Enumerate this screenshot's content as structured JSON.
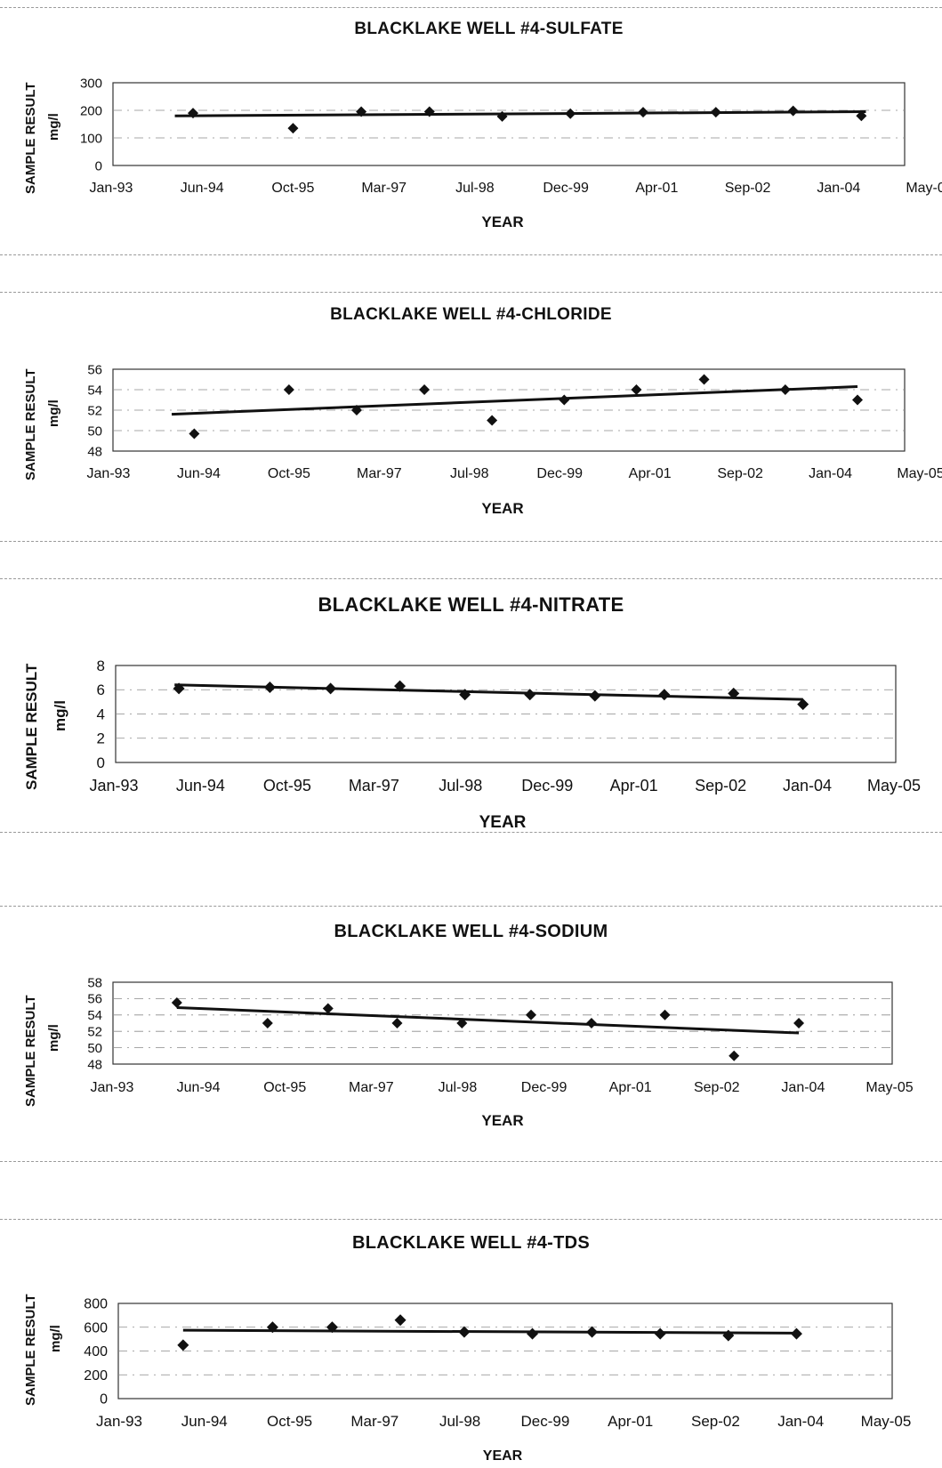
{
  "common": {
    "ylabel": "SAMPLE RESULT",
    "yunit": "mg/l",
    "xlabel": "YEAR",
    "x_tick_labels": [
      "Jan-93",
      "Jun-94",
      "Oct-95",
      "Mar-97",
      "Jul-98",
      "Dec-99",
      "Apr-01",
      "Sep-02",
      "Jan-04",
      "May-05"
    ]
  },
  "chart_data": [
    {
      "type": "scatter",
      "title": "BLACKLAKE WELL #4-SULFATE",
      "xlabel": "YEAR",
      "ylabel": "SAMPLE RESULT mg/l",
      "ylim": [
        0,
        300
      ],
      "yticks": [
        0,
        100,
        200,
        300
      ],
      "grid": true,
      "legend": "none",
      "x": [
        0.9,
        2.0,
        2.75,
        3.5,
        4.3,
        5.05,
        5.85,
        6.65,
        7.5,
        8.25
      ],
      "values": [
        190,
        135,
        195,
        195,
        178,
        188,
        193,
        193,
        198,
        180
      ],
      "trendline": [
        [
          0.7,
          180
        ],
        [
          8.3,
          195
        ]
      ]
    },
    {
      "type": "scatter",
      "title": "BLACKLAKE WELL #4-CHLORIDE",
      "xlabel": "YEAR",
      "ylabel": "SAMPLE RESULT mg/l",
      "ylim": [
        48,
        56
      ],
      "yticks": [
        48,
        50,
        52,
        54,
        56
      ],
      "grid": true,
      "legend": "none",
      "x": [
        0.95,
        2.0,
        2.75,
        3.5,
        4.25,
        5.05,
        5.85,
        6.6,
        7.5,
        8.3
      ],
      "values": [
        49.7,
        54,
        52,
        54,
        51,
        53,
        54,
        55,
        54,
        53
      ],
      "trendline": [
        [
          0.7,
          51.6
        ],
        [
          8.3,
          54.3
        ]
      ]
    },
    {
      "type": "scatter",
      "title": "BLACKLAKE WELL #4-NITRATE",
      "xlabel": "YEAR",
      "ylabel": "SAMPLE RESULT mg/l",
      "ylim": [
        0,
        8
      ],
      "yticks": [
        0,
        2,
        4,
        6,
        8
      ],
      "grid": true,
      "legend": "none",
      "x": [
        0.75,
        1.8,
        2.5,
        3.3,
        4.05,
        4.8,
        5.55,
        6.35,
        7.15,
        7.95
      ],
      "values": [
        6.1,
        6.2,
        6.1,
        6.3,
        5.6,
        5.6,
        5.5,
        5.6,
        5.7,
        4.8
      ],
      "trendline": [
        [
          0.7,
          6.4
        ],
        [
          7.95,
          5.2
        ]
      ]
    },
    {
      "type": "scatter",
      "title": "BLACKLAKE WELL #4-SODIUM",
      "xlabel": "YEAR",
      "ylabel": "SAMPLE RESULT mg/l",
      "ylim": [
        48,
        58
      ],
      "yticks": [
        48,
        50,
        52,
        54,
        56,
        58
      ],
      "grid": true,
      "legend": "none",
      "x": [
        0.75,
        1.8,
        2.5,
        3.3,
        4.05,
        4.85,
        5.55,
        6.4,
        7.2,
        7.95
      ],
      "values": [
        55.5,
        53,
        54.8,
        53,
        53,
        54,
        53,
        54,
        49,
        53
      ],
      "trendline": [
        [
          0.75,
          54.9
        ],
        [
          7.95,
          51.8
        ]
      ]
    },
    {
      "type": "scatter",
      "title": "BLACKLAKE WELL #4-TDS",
      "xlabel": "YEAR",
      "ylabel": "SAMPLE RESULT mg/l",
      "ylim": [
        0,
        800
      ],
      "yticks": [
        0,
        200,
        400,
        600,
        800
      ],
      "grid": true,
      "legend": "none",
      "x": [
        0.75,
        1.8,
        2.5,
        3.3,
        4.05,
        4.85,
        5.55,
        6.35,
        7.15,
        7.95
      ],
      "values": [
        450,
        600,
        600,
        660,
        560,
        545,
        560,
        545,
        530,
        545
      ],
      "trendline": [
        [
          0.75,
          575
        ],
        [
          7.95,
          550
        ]
      ]
    }
  ]
}
